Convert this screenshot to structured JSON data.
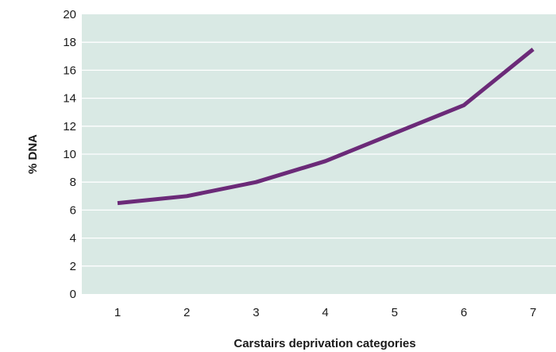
{
  "chart_data": {
    "type": "line",
    "title": "",
    "xlabel": "Carstairs deprivation categories",
    "ylabel": "% DNA",
    "categories": [
      "1",
      "2",
      "3",
      "4",
      "5",
      "6",
      "7"
    ],
    "series": [
      {
        "values": [
          6.5,
          7.0,
          8.0,
          9.5,
          11.5,
          13.5,
          17.5
        ]
      }
    ],
    "ylim": [
      0,
      20
    ],
    "yticks": [
      "0",
      "2",
      "4",
      "6",
      "8",
      "10",
      "12",
      "14",
      "16",
      "18",
      "20"
    ],
    "grid": true,
    "legend": "none",
    "colors": {
      "plot_background": "#d9e9e4",
      "gridline": "#ffffff",
      "line": "#6b2a78",
      "text": "#1a1a1a"
    }
  }
}
